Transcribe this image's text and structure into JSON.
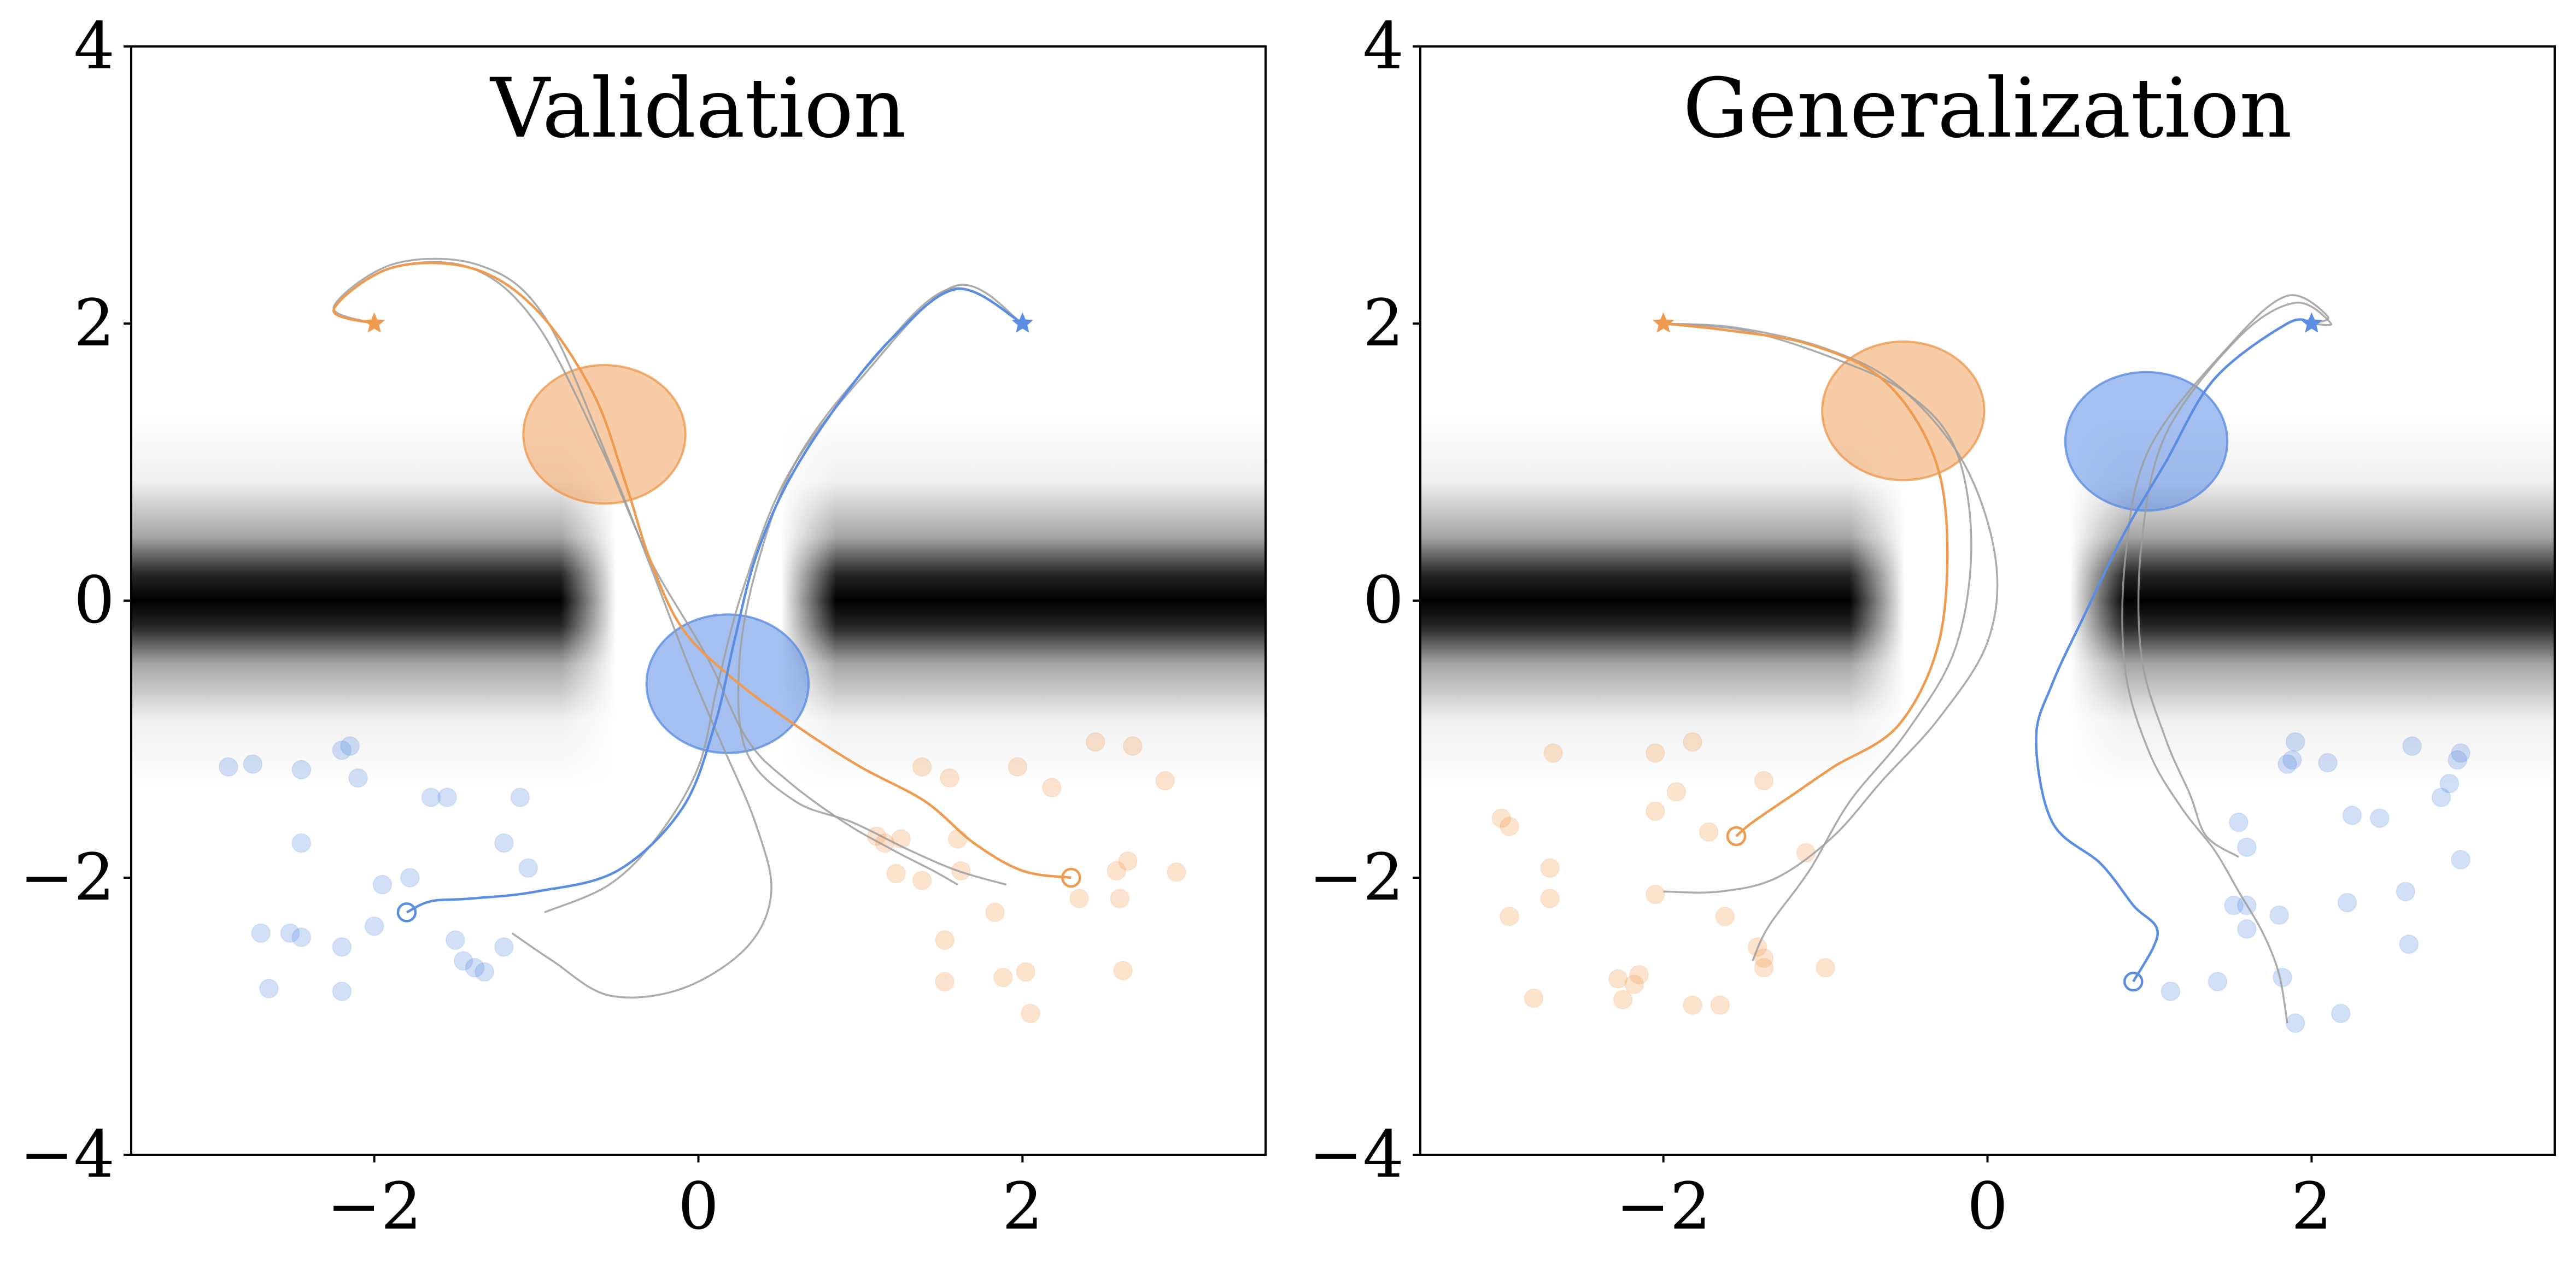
{
  "chart_data": [
    {
      "type": "scatter",
      "title": "Validation",
      "xlim": [
        -3.5,
        3.5
      ],
      "ylim": [
        -4,
        4
      ],
      "xticks": [
        -2,
        0,
        2
      ],
      "yticks": [
        -4,
        -2,
        0,
        2,
        4
      ],
      "xtick_labels": [
        "−2",
        "0",
        "2"
      ],
      "ytick_labels": [
        "−4",
        "−2",
        "0",
        "2",
        "4"
      ],
      "colors": {
        "blue": "#5b8de3",
        "orange": "#ef9a4f",
        "gray": "#9e9e9e"
      },
      "background": "grayscale obstacle field: two dark bands at y=0 with a gap near x=0",
      "goals": {
        "orange": [
          -2.0,
          2.0
        ],
        "blue": [
          2.0,
          2.0
        ]
      },
      "obstacles": [
        {
          "color": "orange",
          "center": [
            -0.58,
            1.2
          ],
          "radius": 0.5
        },
        {
          "color": "blue",
          "center": [
            0.18,
            -0.6
          ],
          "radius": 0.5
        }
      ],
      "blue_points": [
        [
          -2.9,
          -1.2
        ],
        [
          -2.75,
          -1.18
        ],
        [
          -2.45,
          -1.22
        ],
        [
          -2.2,
          -1.08
        ],
        [
          -2.15,
          -1.05
        ],
        [
          -2.1,
          -1.28
        ],
        [
          -1.65,
          -1.42
        ],
        [
          -1.55,
          -1.42
        ],
        [
          -1.1,
          -1.42
        ],
        [
          -2.45,
          -1.75
        ],
        [
          -1.2,
          -1.75
        ],
        [
          -1.05,
          -1.93
        ],
        [
          -1.78,
          -2.0
        ],
        [
          -1.95,
          -2.05
        ],
        [
          -2.7,
          -2.4
        ],
        [
          -2.52,
          -2.4
        ],
        [
          -2.45,
          -2.43
        ],
        [
          -2.0,
          -2.35
        ],
        [
          -2.2,
          -2.5
        ],
        [
          -1.5,
          -2.45
        ],
        [
          -1.2,
          -2.5
        ],
        [
          -1.45,
          -2.6
        ],
        [
          -1.38,
          -2.65
        ],
        [
          -1.32,
          -2.68
        ],
        [
          -2.65,
          -2.8
        ],
        [
          -2.2,
          -2.82
        ]
      ],
      "orange_points": [
        [
          1.38,
          -1.2
        ],
        [
          1.55,
          -1.28
        ],
        [
          1.97,
          -1.2
        ],
        [
          2.18,
          -1.35
        ],
        [
          2.45,
          -1.02
        ],
        [
          2.68,
          -1.05
        ],
        [
          2.88,
          -1.3
        ],
        [
          1.1,
          -1.7
        ],
        [
          1.15,
          -1.75
        ],
        [
          1.25,
          -1.72
        ],
        [
          1.6,
          -1.72
        ],
        [
          1.62,
          -1.95
        ],
        [
          1.22,
          -1.97
        ],
        [
          1.38,
          -2.02
        ],
        [
          2.65,
          -1.88
        ],
        [
          2.58,
          -1.95
        ],
        [
          2.95,
          -1.96
        ],
        [
          2.35,
          -2.15
        ],
        [
          2.6,
          -2.15
        ],
        [
          1.83,
          -2.25
        ],
        [
          1.52,
          -2.45
        ],
        [
          1.52,
          -2.75
        ],
        [
          1.88,
          -2.72
        ],
        [
          2.02,
          -2.68
        ],
        [
          2.62,
          -2.67
        ],
        [
          2.05,
          -2.98
        ]
      ],
      "blue_path": [
        [
          2.0,
          2.0
        ],
        [
          1.6,
          2.25
        ],
        [
          1.2,
          1.9
        ],
        [
          0.85,
          1.4
        ],
        [
          0.55,
          0.85
        ],
        [
          0.35,
          0.3
        ],
        [
          0.22,
          -0.3
        ],
        [
          0.1,
          -0.9
        ],
        [
          -0.1,
          -1.5
        ],
        [
          -0.5,
          -1.95
        ],
        [
          -1.0,
          -2.1
        ],
        [
          -1.4,
          -2.15
        ],
        [
          -1.65,
          -2.17
        ],
        [
          -1.8,
          -2.25
        ]
      ],
      "orange_path": [
        [
          -2.0,
          2.0
        ],
        [
          -2.25,
          2.1
        ],
        [
          -1.9,
          2.4
        ],
        [
          -1.4,
          2.4
        ],
        [
          -1.0,
          2.1
        ],
        [
          -0.65,
          1.5
        ],
        [
          -0.45,
          0.85
        ],
        [
          -0.3,
          0.3
        ],
        [
          -0.1,
          -0.2
        ],
        [
          0.2,
          -0.55
        ],
        [
          0.6,
          -0.9
        ],
        [
          1.0,
          -1.2
        ],
        [
          1.4,
          -1.45
        ],
        [
          1.7,
          -1.75
        ],
        [
          2.0,
          -1.95
        ],
        [
          2.3,
          -2.0
        ]
      ],
      "gray_paths": [
        [
          [
            -2.0,
            2.0
          ],
          [
            -2.25,
            2.1
          ],
          [
            -1.9,
            2.4
          ],
          [
            -1.4,
            2.4
          ],
          [
            -1.0,
            2.0
          ],
          [
            -0.6,
            1.1
          ],
          [
            -0.3,
            0.3
          ],
          [
            0.05,
            -0.4
          ],
          [
            0.3,
            -1.0
          ],
          [
            0.55,
            -1.3
          ],
          [
            0.9,
            -1.6
          ],
          [
            1.2,
            -1.8
          ],
          [
            1.45,
            -1.95
          ],
          [
            1.6,
            -2.05
          ]
        ],
        [
          [
            -2.0,
            2.0
          ],
          [
            -2.25,
            2.12
          ],
          [
            -1.88,
            2.43
          ],
          [
            -1.35,
            2.42
          ],
          [
            -0.95,
            2.05
          ],
          [
            -0.55,
            1.0
          ],
          [
            -0.28,
            0.2
          ],
          [
            -0.05,
            -0.5
          ],
          [
            0.15,
            -1.05
          ],
          [
            0.35,
            -1.6
          ],
          [
            0.45,
            -2.1
          ],
          [
            0.3,
            -2.5
          ],
          [
            -0.1,
            -2.8
          ],
          [
            -0.55,
            -2.85
          ],
          [
            -0.9,
            -2.6
          ],
          [
            -1.15,
            -2.4
          ]
        ],
        [
          [
            2.0,
            2.0
          ],
          [
            1.55,
            2.25
          ],
          [
            1.05,
            1.7
          ],
          [
            0.6,
            1.0
          ],
          [
            0.35,
            0.2
          ],
          [
            0.25,
            -0.5
          ],
          [
            0.3,
            -1.1
          ],
          [
            0.6,
            -1.45
          ],
          [
            0.95,
            -1.6
          ],
          [
            1.3,
            -1.8
          ],
          [
            1.6,
            -1.95
          ],
          [
            1.9,
            -2.05
          ]
        ],
        [
          [
            2.0,
            2.0
          ],
          [
            1.58,
            2.27
          ],
          [
            1.0,
            1.6
          ],
          [
            0.55,
            0.9
          ],
          [
            0.28,
            0.1
          ],
          [
            0.12,
            -0.6
          ],
          [
            0.0,
            -1.2
          ],
          [
            -0.25,
            -1.7
          ],
          [
            -0.55,
            -2.05
          ],
          [
            -0.95,
            -2.25
          ]
        ]
      ]
    },
    {
      "type": "scatter",
      "title": "Generalization",
      "xlim": [
        -3.5,
        3.5
      ],
      "ylim": [
        -4,
        4
      ],
      "xticks": [
        -2,
        0,
        2
      ],
      "yticks": [
        -4,
        -2,
        0,
        2,
        4
      ],
      "xtick_labels": [
        "−2",
        "0",
        "2"
      ],
      "ytick_labels": [
        "−4",
        "−2",
        "0",
        "2",
        "4"
      ],
      "colors": {
        "blue": "#5b8de3",
        "orange": "#ef9a4f",
        "gray": "#9e9e9e"
      },
      "background": "grayscale obstacle field: two dark bands at y=0 with a gap near x=0",
      "goals": {
        "orange": [
          -2.0,
          2.0
        ],
        "blue": [
          2.0,
          2.0
        ]
      },
      "obstacles": [
        {
          "color": "orange",
          "center": [
            -0.52,
            1.37
          ],
          "radius": 0.5
        },
        {
          "color": "blue",
          "center": [
            0.98,
            1.15
          ],
          "radius": 0.5
        }
      ],
      "blue_points": [
        [
          1.9,
          -1.02
        ],
        [
          1.85,
          -1.18
        ],
        [
          1.88,
          -1.15
        ],
        [
          2.1,
          -1.17
        ],
        [
          2.62,
          -1.05
        ],
        [
          2.92,
          -1.1
        ],
        [
          2.9,
          -1.15
        ],
        [
          2.85,
          -1.32
        ],
        [
          2.8,
          -1.42
        ],
        [
          2.25,
          -1.55
        ],
        [
          2.42,
          -1.57
        ],
        [
          1.55,
          -1.6
        ],
        [
          1.6,
          -1.78
        ],
        [
          2.92,
          -1.87
        ],
        [
          2.58,
          -2.1
        ],
        [
          1.52,
          -2.2
        ],
        [
          1.6,
          -2.2
        ],
        [
          2.22,
          -2.18
        ],
        [
          1.8,
          -2.27
        ],
        [
          1.6,
          -2.37
        ],
        [
          2.6,
          -2.48
        ],
        [
          1.42,
          -2.75
        ],
        [
          1.82,
          -2.72
        ],
        [
          1.13,
          -2.82
        ],
        [
          2.18,
          -2.98
        ],
        [
          1.9,
          -3.05
        ]
      ],
      "orange_points": [
        [
          -2.68,
          -1.1
        ],
        [
          -2.05,
          -1.1
        ],
        [
          -1.82,
          -1.02
        ],
        [
          -1.38,
          -1.3
        ],
        [
          -1.92,
          -1.38
        ],
        [
          -2.05,
          -1.52
        ],
        [
          -3.0,
          -1.57
        ],
        [
          -2.95,
          -1.63
        ],
        [
          -1.72,
          -1.67
        ],
        [
          -1.12,
          -1.82
        ],
        [
          -2.7,
          -1.93
        ],
        [
          -2.7,
          -2.15
        ],
        [
          -2.05,
          -2.12
        ],
        [
          -2.95,
          -2.28
        ],
        [
          -1.62,
          -2.28
        ],
        [
          -1.42,
          -2.5
        ],
        [
          -1.38,
          -2.58
        ],
        [
          -2.28,
          -2.73
        ],
        [
          -2.15,
          -2.7
        ],
        [
          -2.18,
          -2.77
        ],
        [
          -1.38,
          -2.65
        ],
        [
          -1.0,
          -2.65
        ],
        [
          -2.8,
          -2.87
        ],
        [
          -2.25,
          -2.88
        ],
        [
          -1.82,
          -2.92
        ],
        [
          -1.65,
          -2.92
        ]
      ],
      "blue_path": [
        [
          2.0,
          2.0
        ],
        [
          1.85,
          2.0
        ],
        [
          1.4,
          1.6
        ],
        [
          1.1,
          1.0
        ],
        [
          0.85,
          0.5
        ],
        [
          0.6,
          -0.1
        ],
        [
          0.4,
          -0.6
        ],
        [
          0.3,
          -1.0
        ],
        [
          0.4,
          -1.6
        ],
        [
          0.7,
          -1.9
        ],
        [
          0.9,
          -2.2
        ],
        [
          1.05,
          -2.4
        ],
        [
          0.9,
          -2.75
        ]
      ],
      "orange_path": [
        [
          -2.0,
          2.0
        ],
        [
          -1.6,
          1.95
        ],
        [
          -1.1,
          1.85
        ],
        [
          -0.65,
          1.6
        ],
        [
          -0.35,
          1.1
        ],
        [
          -0.25,
          0.5
        ],
        [
          -0.3,
          -0.3
        ],
        [
          -0.55,
          -0.9
        ],
        [
          -0.95,
          -1.2
        ],
        [
          -1.2,
          -1.4
        ],
        [
          -1.45,
          -1.6
        ],
        [
          -1.55,
          -1.7
        ]
      ],
      "gray_paths": [
        [
          [
            -2.0,
            2.0
          ],
          [
            -1.55,
            1.97
          ],
          [
            -1.0,
            1.82
          ],
          [
            -0.55,
            1.55
          ],
          [
            -0.15,
            1.0
          ],
          [
            0.05,
            0.3
          ],
          [
            0.0,
            -0.3
          ],
          [
            -0.3,
            -0.85
          ],
          [
            -0.65,
            -1.3
          ],
          [
            -0.95,
            -1.7
          ],
          [
            -1.3,
            -2.0
          ],
          [
            -1.65,
            -2.1
          ],
          [
            -2.0,
            -2.1
          ]
        ],
        [
          [
            -2.0,
            2.0
          ],
          [
            -1.5,
            1.95
          ],
          [
            -0.95,
            1.75
          ],
          [
            -0.5,
            1.5
          ],
          [
            -0.2,
            1.1
          ],
          [
            -0.1,
            0.4
          ],
          [
            -0.2,
            -0.35
          ],
          [
            -0.5,
            -0.95
          ],
          [
            -0.85,
            -1.45
          ],
          [
            -1.1,
            -1.95
          ],
          [
            -1.35,
            -2.35
          ],
          [
            -1.45,
            -2.6
          ]
        ],
        [
          [
            2.0,
            2.0
          ],
          [
            2.1,
            2.05
          ],
          [
            1.85,
            2.2
          ],
          [
            1.5,
            1.85
          ],
          [
            1.0,
            1.1
          ],
          [
            0.85,
            0.3
          ],
          [
            0.85,
            -0.5
          ],
          [
            1.0,
            -1.1
          ],
          [
            1.2,
            -1.5
          ],
          [
            1.4,
            -1.8
          ],
          [
            1.55,
            -2.1
          ],
          [
            1.7,
            -2.4
          ],
          [
            1.8,
            -2.7
          ],
          [
            1.85,
            -3.05
          ]
        ],
        [
          [
            2.0,
            2.0
          ],
          [
            2.12,
            2.0
          ],
          [
            1.9,
            2.15
          ],
          [
            1.55,
            1.9
          ],
          [
            1.1,
            1.2
          ],
          [
            0.95,
            0.4
          ],
          [
            0.95,
            -0.4
          ],
          [
            1.1,
            -1.0
          ],
          [
            1.25,
            -1.4
          ],
          [
            1.35,
            -1.7
          ],
          [
            1.55,
            -1.85
          ]
        ]
      ]
    }
  ]
}
